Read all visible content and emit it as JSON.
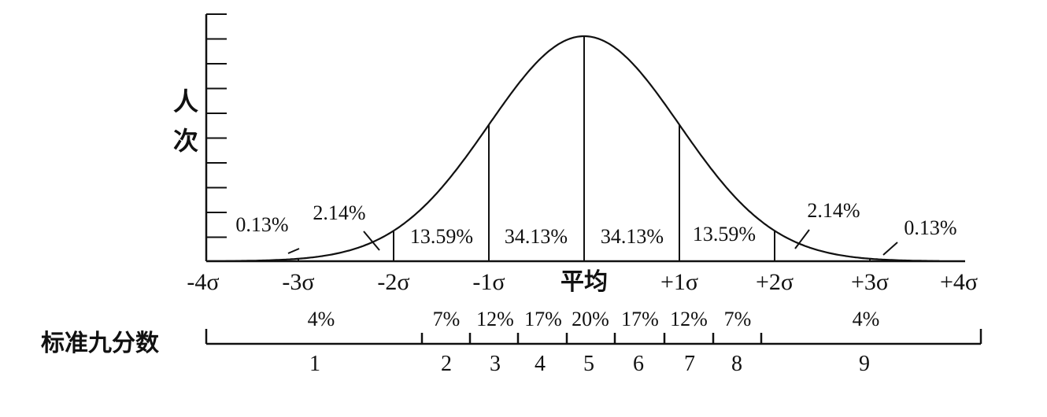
{
  "y_axis_label": [
    "人",
    "次"
  ],
  "x_axis": {
    "tick_labels": [
      "-4σ",
      "-3σ",
      "-2σ",
      "-1σ",
      "平均",
      "+1σ",
      "+2σ",
      "+3σ",
      "+4σ"
    ]
  },
  "region_percentages": [
    {
      "label": "0.13%"
    },
    {
      "label": "2.14%"
    },
    {
      "label": "13.59%"
    },
    {
      "label": "34.13%"
    },
    {
      "label": "34.13%"
    },
    {
      "label": "13.59%"
    },
    {
      "label": "2.14%"
    },
    {
      "label": "0.13%"
    }
  ],
  "stanine": {
    "label": "标准九分数",
    "percent_labels": [
      "4%",
      "7%",
      "12%",
      "17%",
      "20%",
      "17%",
      "12%",
      "7%",
      "4%"
    ],
    "score_labels": [
      "1",
      "2",
      "3",
      "4",
      "5",
      "6",
      "7",
      "8",
      "9"
    ]
  },
  "colors": {
    "ink": "#111111",
    "background": "#ffffff"
  }
}
